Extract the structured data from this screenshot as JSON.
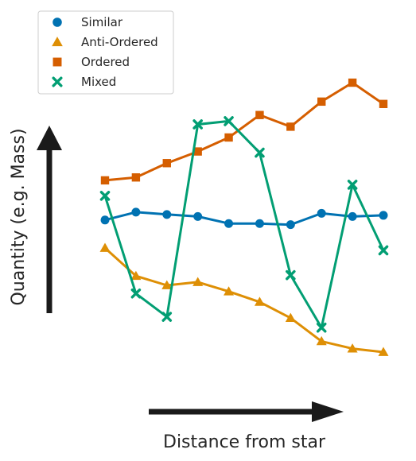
{
  "chart_data": {
    "type": "line",
    "xlabel": "Distance from star",
    "ylabel": "Quantity (e.g. Mass)",
    "x": [
      1,
      2,
      3,
      4,
      5,
      6,
      7,
      8,
      9,
      10
    ],
    "xlim": [
      0.6,
      10.4
    ],
    "ylim": [
      0,
      100
    ],
    "grid": false,
    "axis_ticks": false,
    "legend_position": "top-left",
    "series": [
      {
        "name": "Similar",
        "marker": "circle",
        "color": "#0072b2",
        "values": [
          51.7,
          54.4,
          53.6,
          52.9,
          50.5,
          50.5,
          50.1,
          54.0,
          52.9,
          53.3
        ]
      },
      {
        "name": "Anti-Ordered",
        "marker": "triangle",
        "color": "#de8f05",
        "values": [
          42.1,
          32.5,
          29.3,
          30.4,
          27.2,
          23.6,
          18.1,
          10.1,
          7.6,
          6.4
        ]
      },
      {
        "name": "Ordered",
        "marker": "square",
        "color": "#d55e00",
        "values": [
          65.3,
          66.3,
          71.2,
          75.2,
          80.0,
          87.7,
          83.7,
          92.3,
          98.8,
          91.5
        ]
      },
      {
        "name": "Mixed",
        "marker": "x",
        "color": "#029e73",
        "values": [
          60.0,
          26.5,
          18.5,
          84.5,
          85.6,
          74.8,
          32.8,
          14.8,
          63.8,
          41.3
        ]
      }
    ],
    "arrows": {
      "x_direction": "right",
      "y_direction": "up",
      "color": "#1a1a1a"
    }
  }
}
